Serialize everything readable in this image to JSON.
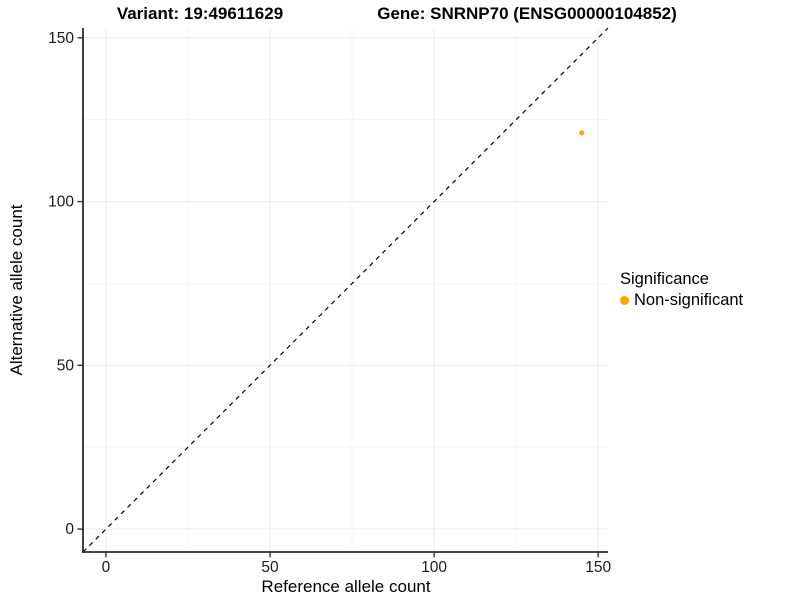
{
  "chart_data": {
    "type": "scatter",
    "title_variant": "Variant: 19:49611629",
    "title_gene": "Gene: SNRNP70 (ENSG00000104852)",
    "xlabel": "Reference allele count",
    "ylabel": "Alternative allele count",
    "xlim": [
      -7,
      153
    ],
    "ylim": [
      -7,
      153
    ],
    "xticks": [
      0,
      50,
      100,
      150
    ],
    "yticks": [
      0,
      50,
      100,
      150
    ],
    "minor_ticks": [
      25,
      75,
      125
    ],
    "grid": true,
    "identity_line": {
      "style": "dashed",
      "from": -7,
      "to": 153
    },
    "points": [
      {
        "x": 145,
        "y": 121,
        "significance": "Non-significant"
      }
    ],
    "legend": {
      "title": "Significance",
      "position": "right",
      "items": [
        {
          "label": "Non-significant",
          "color": "#FFA500"
        }
      ]
    },
    "colors": {
      "point": "#FFA500",
      "grid_major": "#EBEBEB",
      "grid_minor": "#F4F4F4",
      "axis_line": "#2B2B2B",
      "tick_mark": "#333333",
      "tick_label": "#1A1A1A",
      "identity_line": "#000000"
    }
  }
}
